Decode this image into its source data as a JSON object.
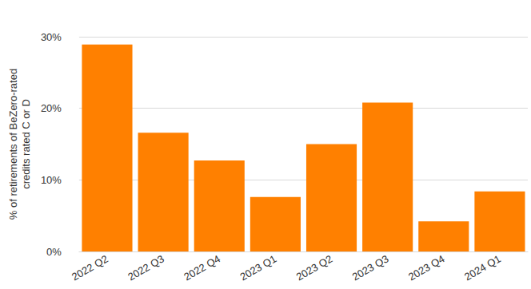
{
  "chart_data": {
    "type": "bar",
    "y_label": "% of retirements of BeZero-rated\ncredits rated C or D",
    "categories": [
      "2022 Q2",
      "2022 Q3",
      "2022 Q4",
      "2023 Q1",
      "2023 Q2",
      "2023 Q3",
      "2023 Q4",
      "2024 Q1"
    ],
    "values": [
      28.9,
      16.6,
      12.7,
      7.6,
      15.0,
      20.8,
      4.2,
      8.4
    ],
    "color": "#ff8000",
    "ylim": [
      0,
      30
    ],
    "yticks": [
      {
        "value": 0,
        "label": "0%"
      },
      {
        "value": 10,
        "label": "10%"
      },
      {
        "value": 20,
        "label": "20%"
      },
      {
        "value": 30,
        "label": "30%"
      }
    ],
    "grid": true
  }
}
